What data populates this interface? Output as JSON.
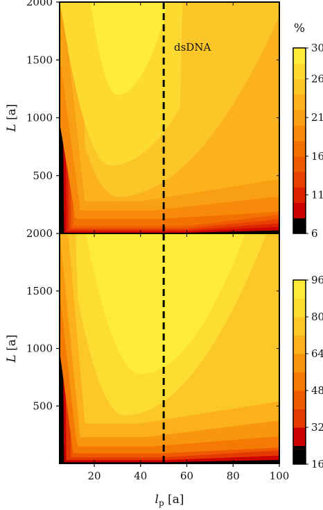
{
  "chart_data": [
    {
      "type": "heatmap",
      "subtype": "filled-contour",
      "panel": "top",
      "title": "",
      "xlabel": "",
      "ylabel_symbol": "L",
      "ylabel_unit": "[a]",
      "xlim": [
        5,
        100
      ],
      "ylim": [
        0,
        2000
      ],
      "yticks": [
        500,
        1000,
        1500,
        2000
      ],
      "xticks": [],
      "vertical_line": {
        "x": 50,
        "style": "dashed"
      },
      "annotation": "dsDNA",
      "colorbar": {
        "unit_label": "%",
        "ticks": [
          6,
          11,
          16,
          21,
          26,
          30
        ],
        "range": [
          6,
          30
        ],
        "levels": [
          6,
          8,
          10,
          12,
          14,
          16,
          18,
          20,
          22,
          24,
          26,
          28,
          30
        ],
        "colors": [
          "#000000",
          "#cc0000",
          "#dd2200",
          "#e84000",
          "#ef5a00",
          "#f37100",
          "#f78a0a",
          "#f99f14",
          "#fbb21e",
          "#fcc628",
          "#fdda30",
          "#ffec3a"
        ]
      },
      "contour_values": "approximate percentage over (lp, L); highest (>28%) in region lp≈12–48, L≳600; falls below 10% near L≈0"
    },
    {
      "type": "heatmap",
      "subtype": "filled-contour",
      "panel": "bottom",
      "title": "",
      "xlabel_symbol": "l",
      "xlabel_sub": "p",
      "xlabel_unit": "[a]",
      "ylabel_symbol": "L",
      "ylabel_unit": "[a]",
      "xlim": [
        5,
        100
      ],
      "ylim": [
        0,
        2000
      ],
      "xticks": [
        20,
        40,
        60,
        80,
        100
      ],
      "yticks": [
        500,
        1000,
        1500,
        2000
      ],
      "vertical_line": {
        "x": 50,
        "style": "dashed"
      },
      "colorbar": {
        "unit_label": "",
        "ticks": [
          16,
          32,
          48,
          64,
          80,
          96
        ],
        "range": [
          16,
          96
        ],
        "levels": [
          16,
          24,
          32,
          40,
          48,
          56,
          64,
          72,
          80,
          88,
          96
        ],
        "colors": [
          "#000000",
          "#cc0000",
          "#e43a00",
          "#ef5a00",
          "#f47a04",
          "#f8960f",
          "#fbb01c",
          "#fcc828",
          "#fedd32",
          "#ffec3a"
        ]
      },
      "contour_values": "approximate percentage over (lp, L); highest (>88%) in region lp≈12–55, L≳800; falls below 24% near L≈0"
    }
  ]
}
